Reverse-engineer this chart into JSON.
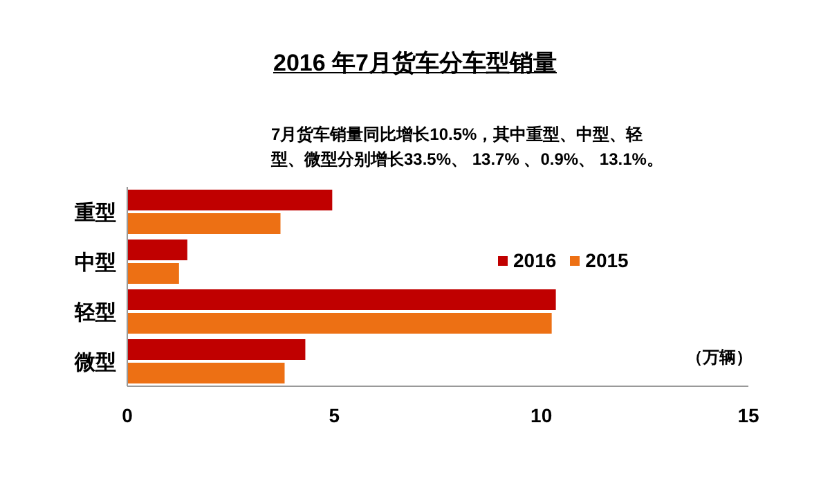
{
  "chart_data": {
    "type": "bar",
    "orientation": "horizontal",
    "title": "2016 年7月货车分车型销量",
    "annotations": [
      "7月货车销量同比增长10.5%，其中重型、中型、轻型、微型分别增长33.5%、 13.7% 、0.9%、 13.1%。",
      "（万辆）"
    ],
    "categories": [
      "重型",
      "中型",
      "轻型",
      "微型"
    ],
    "series": [
      {
        "name": "2016",
        "color": "#c00000",
        "values": [
          4.95,
          1.45,
          10.35,
          4.3
        ]
      },
      {
        "name": "2015",
        "color": "#ed7014",
        "values": [
          3.7,
          1.25,
          10.25,
          3.8
        ]
      }
    ],
    "xlim": [
      0,
      15
    ],
    "xticks": [
      0,
      5,
      10,
      15
    ],
    "grid": false,
    "legend": "right"
  }
}
